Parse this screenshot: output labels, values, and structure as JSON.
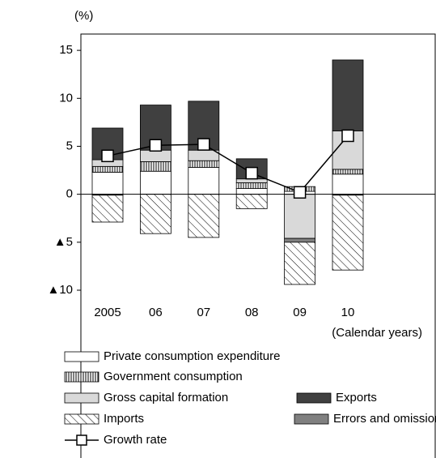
{
  "chart_data": {
    "type": "stacked-bar-line",
    "y_unit": "(%)",
    "x_note": "(Calendar years)",
    "categories": [
      "2005",
      "06",
      "07",
      "08",
      "09",
      "10"
    ],
    "ylim": [
      -10,
      16.7
    ],
    "yticks": [
      15,
      10,
      5,
      0,
      {
        "value": -5,
        "label": "▲5"
      },
      {
        "value": -10,
        "label": "▲10"
      }
    ],
    "series": [
      {
        "name": "Private consumption expenditure",
        "color": "#ffffff",
        "pattern": "solid",
        "values": [
          2.3,
          2.4,
          2.8,
          0.6,
          0.3,
          2.1
        ]
      },
      {
        "name": "Government consumption",
        "color": "#ffffff",
        "pattern": "vertical-lines",
        "values": [
          0.6,
          1.0,
          0.7,
          0.6,
          0.5,
          0.5
        ]
      },
      {
        "name": "Gross capital formation",
        "color": "#d9d9d9",
        "pattern": "solid",
        "values": [
          0.7,
          1.2,
          1.1,
          0.4,
          -4.6,
          4.0
        ]
      },
      {
        "name": "Exports",
        "color": "#404040",
        "pattern": "solid",
        "values": [
          3.3,
          4.7,
          5.1,
          2.1,
          0,
          7.4
        ]
      },
      {
        "name": "Imports",
        "color": "#ffffff",
        "pattern": "diagonal-lines",
        "values": [
          -2.8,
          -4.1,
          -4.5,
          -1.5,
          -4.4,
          -7.8
        ]
      },
      {
        "name": "Errors and omissions",
        "color": "#808080",
        "pattern": "solid",
        "values": [
          -0.1,
          0,
          0,
          0,
          -0.4,
          -0.1
        ]
      },
      {
        "name": "Growth rate",
        "type": "line",
        "color": "#000000",
        "values": [
          4.0,
          5.1,
          5.2,
          2.2,
          0.2,
          6.1
        ]
      }
    ]
  }
}
